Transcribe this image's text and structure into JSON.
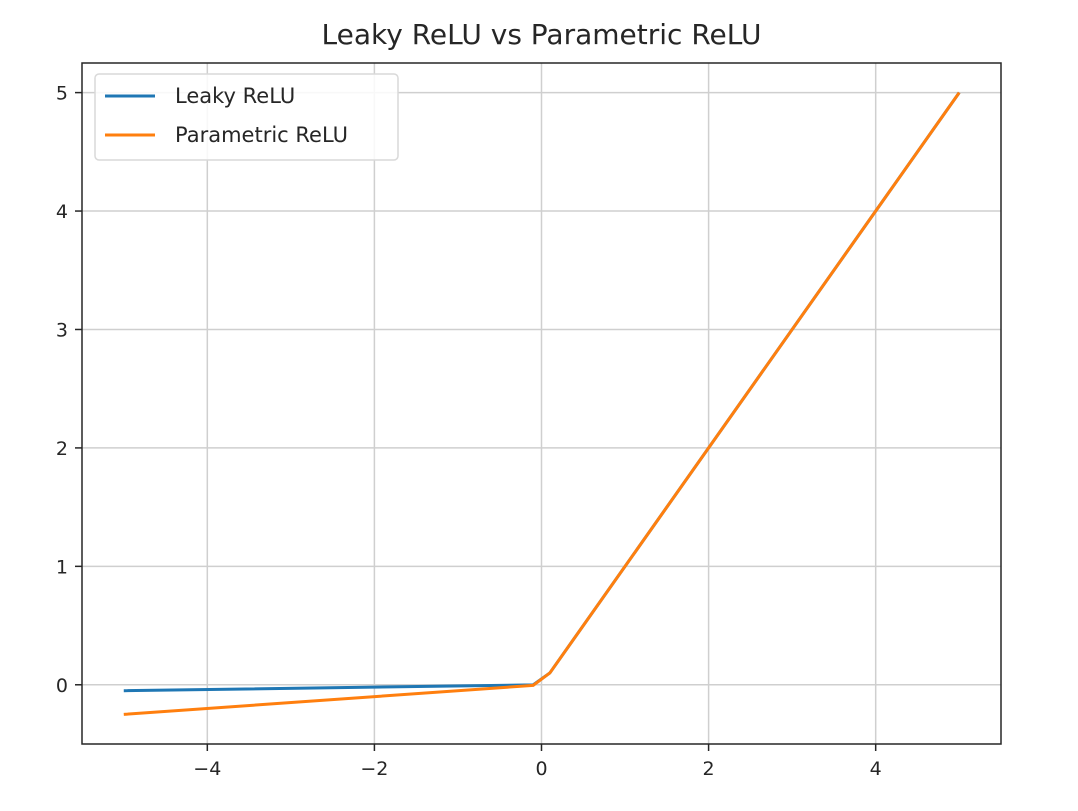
{
  "chart_data": {
    "type": "line",
    "title": "Leaky ReLU vs Parametric ReLU",
    "xlabel": "",
    "ylabel": "",
    "xlim": [
      -5.5,
      5.5
    ],
    "ylim": [
      -0.5,
      5.25
    ],
    "xticks": [
      -4,
      -2,
      0,
      2,
      4
    ],
    "xtick_labels": [
      "−4",
      "−2",
      "0",
      "2",
      "4"
    ],
    "yticks": [
      0,
      1,
      2,
      3,
      4,
      5
    ],
    "ytick_labels": [
      "0",
      "1",
      "2",
      "3",
      "4",
      "5"
    ],
    "grid": true,
    "legend_position": "top-left",
    "series": [
      {
        "name": "Leaky ReLU",
        "color": "#1f77b4",
        "x": [
          -5,
          -0.1,
          0.1,
          5
        ],
        "y": [
          -0.05,
          -0.001,
          0.1,
          5
        ]
      },
      {
        "name": "Parametric ReLU",
        "color": "#ff7f0e",
        "x": [
          -5,
          -0.1,
          0.1,
          5
        ],
        "y": [
          -0.25,
          -0.005,
          0.1,
          5
        ]
      }
    ]
  }
}
